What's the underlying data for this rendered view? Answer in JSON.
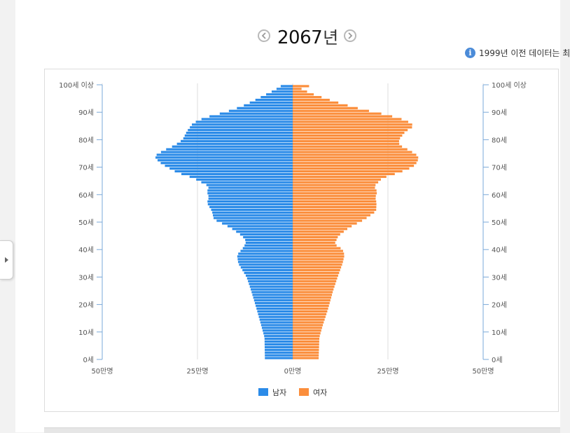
{
  "header": {
    "year": "2067",
    "year_suffix": "년",
    "prev_icon": "chevron-left-icon",
    "next_icon": "chevron-right-icon"
  },
  "info_note": {
    "icon": "info-icon",
    "text": "1999년 이전 데이터는 최"
  },
  "chart_data": {
    "type": "bar",
    "orientation": "horizontal",
    "variant": "population-pyramid",
    "x_tick_labels": [
      "50만명",
      "25만명",
      "0만명",
      "25만명",
      "50만명"
    ],
    "xlim": [
      -50,
      50
    ],
    "x_unit": "만명",
    "y_tick_labels": [
      "0세",
      "10세",
      "20세",
      "30세",
      "40세",
      "50세",
      "60세",
      "70세",
      "80세",
      "90세",
      "100세 이상"
    ],
    "ylim": [
      0,
      100
    ],
    "grid": true,
    "legend_position": "bottom-center",
    "colors": {
      "male": "#2b8be8",
      "female": "#fb8e3c"
    },
    "series": [
      {
        "name": "남자",
        "profile": [
          [
            0,
            7.3
          ],
          [
            8,
            7.4
          ],
          [
            12,
            8.2
          ],
          [
            18,
            9.4
          ],
          [
            25,
            10.9
          ],
          [
            30,
            12.1
          ],
          [
            35,
            14.3
          ],
          [
            38,
            14.6
          ],
          [
            41,
            12.8
          ],
          [
            43,
            12.2
          ],
          [
            45,
            13.3
          ],
          [
            48,
            16.4
          ],
          [
            51,
            20.7
          ],
          [
            54,
            21.2
          ],
          [
            57,
            22.5
          ],
          [
            59,
            22.0
          ],
          [
            61,
            22.5
          ],
          [
            63,
            22.0
          ],
          [
            66,
            26.0
          ],
          [
            68,
            30.3
          ],
          [
            70,
            33.0
          ],
          [
            72,
            35.2
          ],
          [
            74,
            36.3
          ],
          [
            76,
            34.0
          ],
          [
            78,
            30.9
          ],
          [
            80,
            28.9
          ],
          [
            83,
            27.8
          ],
          [
            86,
            26.2
          ],
          [
            88,
            23.2
          ],
          [
            90,
            17.8
          ],
          [
            92,
            13.6
          ],
          [
            94,
            10.5
          ],
          [
            96,
            7.7
          ],
          [
            98,
            4.8
          ],
          [
            100,
            2.6
          ]
        ]
      },
      {
        "name": "여자",
        "profile": [
          [
            0,
            6.8
          ],
          [
            8,
            7.0
          ],
          [
            12,
            7.8
          ],
          [
            18,
            9.2
          ],
          [
            25,
            10.6
          ],
          [
            30,
            11.8
          ],
          [
            35,
            13.1
          ],
          [
            38,
            13.6
          ],
          [
            40,
            13.1
          ],
          [
            42,
            11.0
          ],
          [
            45,
            12.0
          ],
          [
            48,
            14.8
          ],
          [
            51,
            18.9
          ],
          [
            54,
            21.9
          ],
          [
            57,
            22.0
          ],
          [
            59,
            21.7
          ],
          [
            61,
            22.2
          ],
          [
            63,
            21.4
          ],
          [
            66,
            23.5
          ],
          [
            68,
            27.9
          ],
          [
            70,
            31.5
          ],
          [
            72,
            32.8
          ],
          [
            74,
            33.0
          ],
          [
            76,
            30.8
          ],
          [
            78,
            28.0
          ],
          [
            80,
            27.9
          ],
          [
            83,
            29.6
          ],
          [
            85,
            31.9
          ],
          [
            87,
            29.8
          ],
          [
            89,
            24.9
          ],
          [
            91,
            18.4
          ],
          [
            93,
            13.1
          ],
          [
            95,
            8.6
          ],
          [
            97,
            4.5
          ],
          [
            99,
            1.6
          ],
          [
            100,
            7.0
          ]
        ]
      }
    ]
  }
}
